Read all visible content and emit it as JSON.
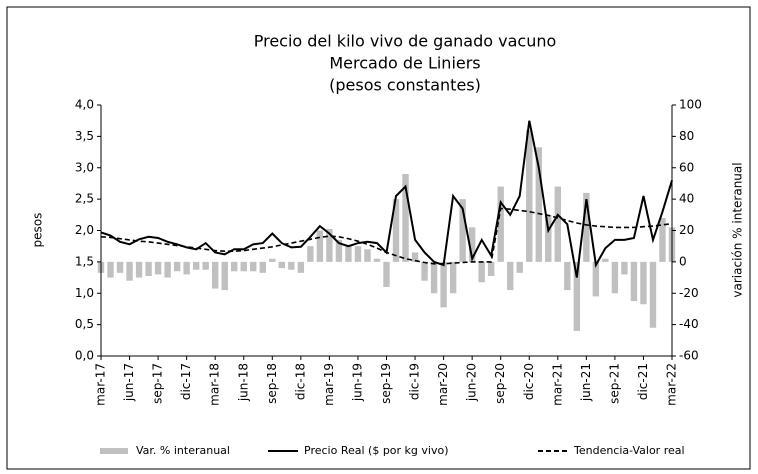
{
  "chart_data": {
    "type": "bar-line",
    "title": "Precio del kilo vivo de ganado vacuno",
    "subtitle": "Mercado de Liniers",
    "note": "(pesos constantes)",
    "y_label": "pesos",
    "y2_label": "variación % interanual",
    "categories": [
      "mar-17",
      null,
      null,
      "jun-17",
      null,
      null,
      "sep-17",
      null,
      null,
      "dic-17",
      null,
      null,
      "mar-18",
      null,
      null,
      "jun-18",
      null,
      null,
      "sep-18",
      null,
      null,
      "dic-18",
      null,
      null,
      "mar-19",
      null,
      null,
      "jun-19",
      null,
      null,
      "sep-19",
      null,
      null,
      "dic-19",
      null,
      null,
      "mar-20",
      null,
      null,
      "jun-20",
      null,
      null,
      "sep-20",
      null,
      null,
      "dic-20",
      null,
      null,
      "mar-21",
      null,
      null,
      "jun-21",
      null,
      null,
      "sep-21",
      null,
      null,
      "dic-21",
      null,
      null,
      "mar-22"
    ],
    "series": [
      {
        "name": "Var. % interanual",
        "kind": "bar",
        "axis": "y2",
        "color": "#c0c0c0",
        "values": [
          -7,
          -10,
          -7,
          -12,
          -10,
          -9,
          -8,
          -10,
          -6,
          -8,
          -5,
          -5,
          -17,
          -18,
          -6,
          -6,
          -6,
          -7,
          2,
          -4,
          -5,
          -7,
          10,
          20,
          21,
          14,
          10,
          10,
          8,
          2,
          -16,
          40,
          56,
          6,
          -12,
          -20,
          -29,
          -20,
          40,
          22,
          -13,
          -9,
          48,
          -18,
          -7,
          84,
          73,
          30,
          48,
          -18,
          -44,
          44,
          -22,
          2,
          -20,
          -8,
          -25,
          -27,
          -42,
          28,
          22
        ]
      },
      {
        "name": "Precio Real ($ por kg vivo)",
        "kind": "line",
        "color": "#000000",
        "values": [
          1.97,
          1.92,
          1.82,
          1.78,
          1.86,
          1.9,
          1.88,
          1.82,
          1.78,
          1.73,
          1.7,
          1.8,
          1.65,
          1.62,
          1.7,
          1.7,
          1.78,
          1.8,
          1.95,
          1.8,
          1.73,
          1.74,
          1.9,
          2.07,
          1.95,
          1.8,
          1.75,
          1.8,
          1.82,
          1.8,
          1.65,
          2.55,
          2.7,
          1.85,
          1.65,
          1.5,
          1.45,
          2.55,
          2.35,
          1.55,
          1.85,
          1.6,
          2.45,
          2.25,
          2.55,
          3.75,
          3.0,
          2.0,
          2.25,
          2.1,
          1.25,
          2.5,
          1.45,
          1.72,
          1.85,
          1.85,
          1.88,
          2.55,
          1.85,
          2.3,
          2.8
        ]
      },
      {
        "name": "Tendencia-Valor real",
        "kind": "dashed",
        "color": "#000000",
        "values": [
          1.9,
          1.89,
          1.87,
          1.85,
          1.83,
          1.82,
          1.8,
          1.78,
          1.76,
          1.74,
          1.72,
          1.7,
          1.68,
          1.67,
          1.67,
          1.68,
          1.7,
          1.72,
          1.74,
          1.77,
          1.8,
          1.83,
          1.86,
          1.89,
          1.91,
          1.9,
          1.87,
          1.83,
          1.78,
          1.72,
          1.65,
          1.6,
          1.55,
          1.52,
          1.49,
          1.47,
          1.47,
          1.48,
          1.49,
          1.5,
          1.5,
          1.5,
          2.35,
          2.34,
          2.32,
          2.3,
          2.27,
          2.24,
          2.2,
          2.16,
          2.12,
          2.09,
          2.07,
          2.06,
          2.05,
          2.05,
          2.05,
          2.06,
          2.07,
          2.09,
          2.11
        ]
      }
    ],
    "ylim": [
      0,
      4
    ],
    "yticks": [
      {
        "value": 0,
        "label": "0,0"
      },
      {
        "value": 0.5,
        "label": "0,5"
      },
      {
        "value": 1,
        "label": "1,0"
      },
      {
        "value": 1.5,
        "label": "1,5"
      },
      {
        "value": 2,
        "label": "2,0"
      },
      {
        "value": 2.5,
        "label": "2,5"
      },
      {
        "value": 3,
        "label": "3,0"
      },
      {
        "value": 3.5,
        "label": "3,5"
      },
      {
        "value": 4,
        "label": "4,0"
      }
    ],
    "y2lim": [
      -60,
      100
    ],
    "y2ticks": [
      -60,
      -40,
      -20,
      0,
      20,
      40,
      60,
      80,
      100
    ],
    "legend": "bottom"
  }
}
